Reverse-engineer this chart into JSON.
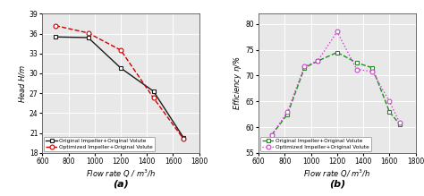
{
  "plot_a": {
    "subtitle": "(a)",
    "xlabel": "Flow rate $Q$ / m$^3$/h",
    "ylabel": "Head $H$/m",
    "xlim": [
      600,
      1800
    ],
    "ylim": [
      18,
      39
    ],
    "xticks": [
      600,
      800,
      1000,
      1200,
      1400,
      1600,
      1800
    ],
    "yticks": [
      18,
      21,
      24,
      27,
      30,
      33,
      36,
      39
    ],
    "original_Q": [
      700,
      950,
      1200,
      1450,
      1680
    ],
    "original_H": [
      35.5,
      35.4,
      30.8,
      27.3,
      20.3
    ],
    "optimized_Q": [
      700,
      950,
      1200,
      1450,
      1680
    ],
    "optimized_H": [
      37.2,
      36.1,
      33.5,
      26.3,
      20.1
    ],
    "original_color": "#1a1a1a",
    "optimized_color": "#cc0000",
    "original_label": "Original Impeller+Original Volute",
    "optimized_label": "Optimized Impeller+Original Volute",
    "original_ls": "-",
    "optimized_ls": "--",
    "original_marker": "s",
    "optimized_marker": "o"
  },
  "plot_b": {
    "subtitle": "(b)",
    "xlabel": "Flow rate $Q$/ m$^3$/h",
    "ylabel": "Efficiency $\\eta$/%",
    "xlim": [
      600,
      1800
    ],
    "ylim": [
      55,
      82
    ],
    "xticks": [
      600,
      800,
      1000,
      1200,
      1400,
      1600,
      1800
    ],
    "yticks": [
      55,
      60,
      65,
      70,
      75,
      80
    ],
    "original_Q": [
      700,
      820,
      950,
      1050,
      1200,
      1350,
      1470,
      1600,
      1680
    ],
    "original_eta": [
      58.5,
      62.5,
      71.5,
      72.8,
      74.5,
      72.5,
      71.5,
      63.0,
      60.5
    ],
    "optimized_Q": [
      700,
      820,
      950,
      1050,
      1200,
      1350,
      1470,
      1600,
      1680
    ],
    "optimized_eta": [
      58.5,
      63.0,
      71.8,
      72.8,
      78.5,
      71.2,
      70.8,
      65.0,
      60.8
    ],
    "original_color": "#228B22",
    "optimized_color": "#cc44cc",
    "original_label": "Original Impeller+Original Volute",
    "optimized_label": "Optimized Impeller+Original Volute",
    "original_ls": "--",
    "optimized_ls": ":",
    "original_marker": "s",
    "optimized_marker": "o"
  },
  "bg_color": "#e8e8e8",
  "grid_color": "#ffffff",
  "subtitle_fontsize": 8,
  "label_fontsize": 6,
  "tick_fontsize": 5.5,
  "legend_fontsize": 4.2,
  "marker_size": 3.5,
  "line_width": 1.0
}
